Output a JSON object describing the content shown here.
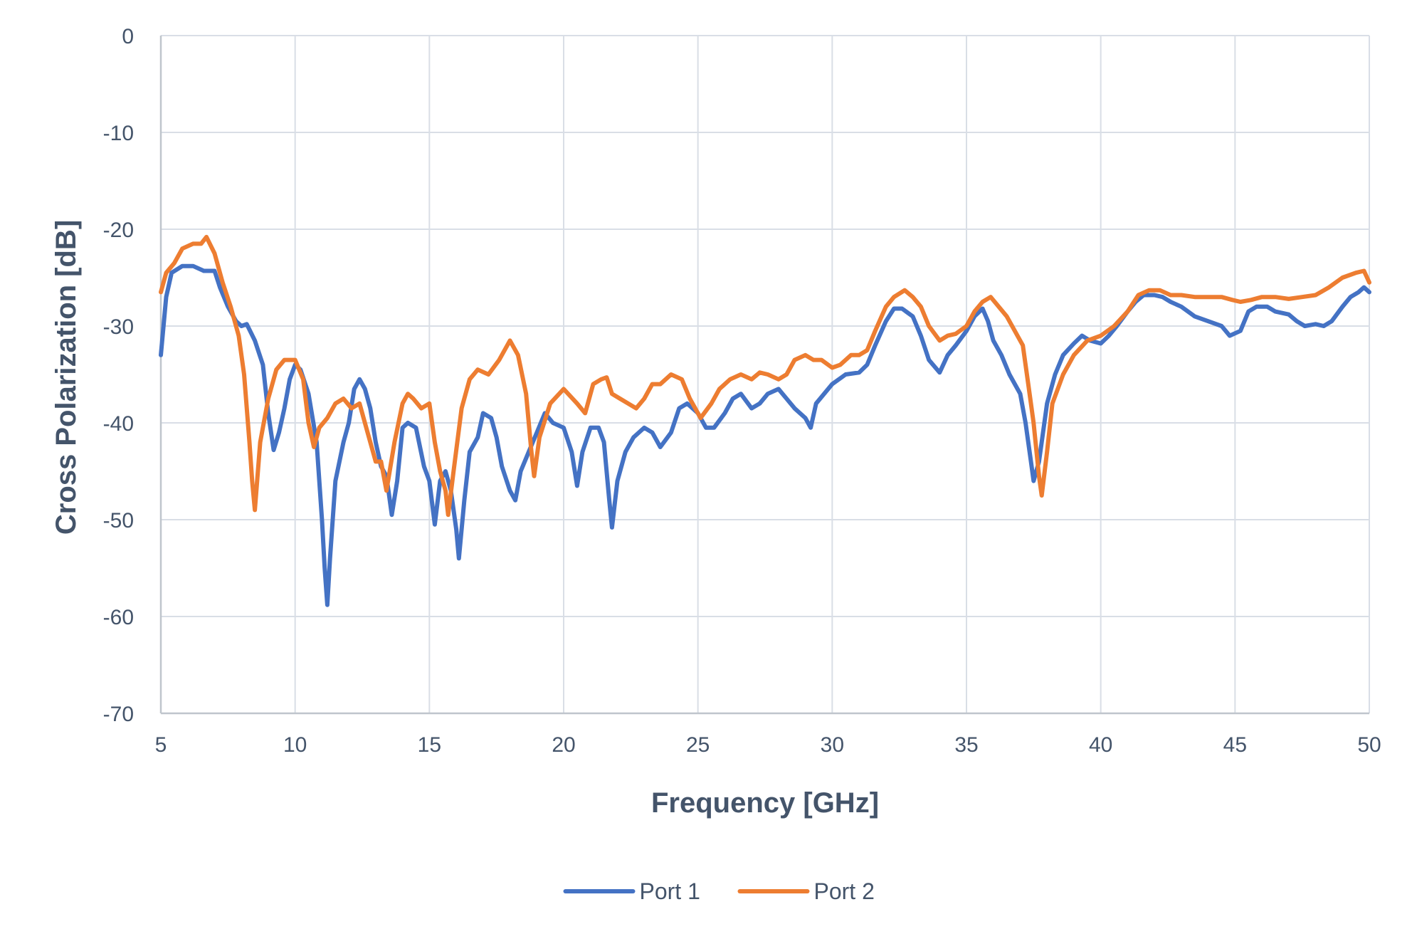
{
  "chart_data": {
    "type": "line",
    "title": "",
    "xlabel": "Frequency [GHz]",
    "ylabel": "Cross Polarization [dB]",
    "xlim": [
      5,
      50
    ],
    "ylim": [
      -70,
      0
    ],
    "x_ticks": [
      5,
      10,
      15,
      20,
      25,
      30,
      35,
      40,
      45,
      50
    ],
    "y_ticks": [
      0,
      -10,
      -20,
      -30,
      -40,
      -50,
      -60,
      -70
    ],
    "grid": true,
    "legend_position": "bottom",
    "series": [
      {
        "name": "Port 1",
        "color": "#4472c4",
        "points": [
          [
            5.0,
            -33.0
          ],
          [
            5.2,
            -27.0
          ],
          [
            5.4,
            -24.5
          ],
          [
            5.8,
            -23.8
          ],
          [
            6.2,
            -23.8
          ],
          [
            6.6,
            -24.3
          ],
          [
            7.0,
            -24.3
          ],
          [
            7.2,
            -26.0
          ],
          [
            7.5,
            -28.0
          ],
          [
            7.8,
            -29.5
          ],
          [
            8.0,
            -30.0
          ],
          [
            8.2,
            -29.8
          ],
          [
            8.5,
            -31.5
          ],
          [
            8.8,
            -34.0
          ],
          [
            9.0,
            -39.0
          ],
          [
            9.2,
            -42.8
          ],
          [
            9.4,
            -41.0
          ],
          [
            9.6,
            -38.5
          ],
          [
            9.8,
            -35.5
          ],
          [
            10.0,
            -34.0
          ],
          [
            10.2,
            -34.5
          ],
          [
            10.5,
            -37.0
          ],
          [
            10.8,
            -42.0
          ],
          [
            11.0,
            -50.0
          ],
          [
            11.1,
            -55.0
          ],
          [
            11.2,
            -58.8
          ],
          [
            11.3,
            -54.0
          ],
          [
            11.5,
            -46.0
          ],
          [
            11.8,
            -42.0
          ],
          [
            12.0,
            -40.0
          ],
          [
            12.2,
            -36.5
          ],
          [
            12.4,
            -35.5
          ],
          [
            12.6,
            -36.5
          ],
          [
            12.8,
            -38.5
          ],
          [
            13.0,
            -42.0
          ],
          [
            13.2,
            -44.5
          ],
          [
            13.4,
            -45.5
          ],
          [
            13.6,
            -49.5
          ],
          [
            13.8,
            -46.0
          ],
          [
            14.0,
            -40.5
          ],
          [
            14.2,
            -40.0
          ],
          [
            14.5,
            -40.5
          ],
          [
            14.8,
            -44.5
          ],
          [
            15.0,
            -46.0
          ],
          [
            15.2,
            -50.5
          ],
          [
            15.4,
            -46.0
          ],
          [
            15.6,
            -45.0
          ],
          [
            15.8,
            -47.0
          ],
          [
            16.0,
            -51.0
          ],
          [
            16.1,
            -54.0
          ],
          [
            16.3,
            -48.0
          ],
          [
            16.5,
            -43.0
          ],
          [
            16.8,
            -41.5
          ],
          [
            17.0,
            -39.0
          ],
          [
            17.3,
            -39.5
          ],
          [
            17.5,
            -41.5
          ],
          [
            17.7,
            -44.5
          ],
          [
            18.0,
            -47.0
          ],
          [
            18.2,
            -48.0
          ],
          [
            18.4,
            -45.0
          ],
          [
            18.7,
            -43.0
          ],
          [
            19.0,
            -41.0
          ],
          [
            19.3,
            -39.0
          ],
          [
            19.6,
            -40.0
          ],
          [
            20.0,
            -40.5
          ],
          [
            20.3,
            -43.0
          ],
          [
            20.5,
            -46.5
          ],
          [
            20.7,
            -43.0
          ],
          [
            21.0,
            -40.5
          ],
          [
            21.3,
            -40.5
          ],
          [
            21.5,
            -42.0
          ],
          [
            21.7,
            -48.0
          ],
          [
            21.8,
            -50.8
          ],
          [
            22.0,
            -46.0
          ],
          [
            22.3,
            -43.0
          ],
          [
            22.6,
            -41.5
          ],
          [
            23.0,
            -40.5
          ],
          [
            23.3,
            -41.0
          ],
          [
            23.6,
            -42.5
          ],
          [
            24.0,
            -41.0
          ],
          [
            24.3,
            -38.5
          ],
          [
            24.6,
            -38.0
          ],
          [
            25.0,
            -39.0
          ],
          [
            25.3,
            -40.5
          ],
          [
            25.6,
            -40.5
          ],
          [
            26.0,
            -39.0
          ],
          [
            26.3,
            -37.5
          ],
          [
            26.6,
            -37.0
          ],
          [
            27.0,
            -38.5
          ],
          [
            27.3,
            -38.0
          ],
          [
            27.6,
            -37.0
          ],
          [
            28.0,
            -36.5
          ],
          [
            28.3,
            -37.5
          ],
          [
            28.6,
            -38.5
          ],
          [
            29.0,
            -39.5
          ],
          [
            29.2,
            -40.5
          ],
          [
            29.4,
            -38.0
          ],
          [
            29.7,
            -37.0
          ],
          [
            30.0,
            -36.0
          ],
          [
            30.5,
            -35.0
          ],
          [
            31.0,
            -34.8
          ],
          [
            31.3,
            -34.0
          ],
          [
            31.6,
            -32.0
          ],
          [
            32.0,
            -29.5
          ],
          [
            32.3,
            -28.2
          ],
          [
            32.6,
            -28.2
          ],
          [
            33.0,
            -29.0
          ],
          [
            33.3,
            -31.0
          ],
          [
            33.6,
            -33.5
          ],
          [
            34.0,
            -34.8
          ],
          [
            34.3,
            -33.0
          ],
          [
            34.6,
            -32.0
          ],
          [
            35.0,
            -30.5
          ],
          [
            35.3,
            -29.0
          ],
          [
            35.6,
            -28.2
          ],
          [
            35.8,
            -29.5
          ],
          [
            36.0,
            -31.5
          ],
          [
            36.3,
            -33.0
          ],
          [
            36.6,
            -35.0
          ],
          [
            37.0,
            -37.0
          ],
          [
            37.2,
            -40.0
          ],
          [
            37.4,
            -44.0
          ],
          [
            37.5,
            -46.0
          ],
          [
            37.7,
            -44.0
          ],
          [
            38.0,
            -38.0
          ],
          [
            38.3,
            -35.0
          ],
          [
            38.6,
            -33.0
          ],
          [
            39.0,
            -31.8
          ],
          [
            39.3,
            -31.0
          ],
          [
            39.6,
            -31.5
          ],
          [
            40.0,
            -31.8
          ],
          [
            40.3,
            -31.0
          ],
          [
            40.6,
            -30.0
          ],
          [
            41.0,
            -28.5
          ],
          [
            41.3,
            -27.5
          ],
          [
            41.6,
            -26.8
          ],
          [
            42.0,
            -26.8
          ],
          [
            42.3,
            -27.0
          ],
          [
            42.6,
            -27.5
          ],
          [
            43.0,
            -28.0
          ],
          [
            43.5,
            -29.0
          ],
          [
            44.0,
            -29.5
          ],
          [
            44.5,
            -30.0
          ],
          [
            44.8,
            -31.0
          ],
          [
            45.2,
            -30.5
          ],
          [
            45.5,
            -28.5
          ],
          [
            45.8,
            -28.0
          ],
          [
            46.2,
            -28.0
          ],
          [
            46.5,
            -28.5
          ],
          [
            47.0,
            -28.8
          ],
          [
            47.3,
            -29.5
          ],
          [
            47.6,
            -30.0
          ],
          [
            48.0,
            -29.8
          ],
          [
            48.3,
            -30.0
          ],
          [
            48.6,
            -29.5
          ],
          [
            49.0,
            -28.0
          ],
          [
            49.3,
            -27.0
          ],
          [
            49.6,
            -26.5
          ],
          [
            49.8,
            -26.0
          ],
          [
            50.0,
            -26.5
          ]
        ]
      },
      {
        "name": "Port 2",
        "color": "#ed7d31",
        "points": [
          [
            5.0,
            -26.5
          ],
          [
            5.2,
            -24.5
          ],
          [
            5.5,
            -23.5
          ],
          [
            5.8,
            -22.0
          ],
          [
            6.2,
            -21.5
          ],
          [
            6.5,
            -21.5
          ],
          [
            6.7,
            -20.8
          ],
          [
            7.0,
            -22.5
          ],
          [
            7.3,
            -25.5
          ],
          [
            7.6,
            -28.0
          ],
          [
            7.9,
            -31.0
          ],
          [
            8.1,
            -35.0
          ],
          [
            8.3,
            -42.0
          ],
          [
            8.4,
            -46.0
          ],
          [
            8.5,
            -49.0
          ],
          [
            8.7,
            -42.0
          ],
          [
            9.0,
            -37.5
          ],
          [
            9.3,
            -34.5
          ],
          [
            9.6,
            -33.5
          ],
          [
            10.0,
            -33.5
          ],
          [
            10.3,
            -35.5
          ],
          [
            10.5,
            -40.0
          ],
          [
            10.7,
            -42.5
          ],
          [
            10.9,
            -40.5
          ],
          [
            11.2,
            -39.5
          ],
          [
            11.5,
            -38.0
          ],
          [
            11.8,
            -37.5
          ],
          [
            12.1,
            -38.5
          ],
          [
            12.4,
            -38.0
          ],
          [
            12.7,
            -41.0
          ],
          [
            13.0,
            -44.0
          ],
          [
            13.2,
            -44.0
          ],
          [
            13.4,
            -47.0
          ],
          [
            13.7,
            -42.0
          ],
          [
            14.0,
            -38.0
          ],
          [
            14.2,
            -37.0
          ],
          [
            14.4,
            -37.5
          ],
          [
            14.7,
            -38.5
          ],
          [
            15.0,
            -38.0
          ],
          [
            15.2,
            -42.0
          ],
          [
            15.4,
            -45.0
          ],
          [
            15.6,
            -47.0
          ],
          [
            15.7,
            -49.5
          ],
          [
            15.9,
            -45.0
          ],
          [
            16.2,
            -38.5
          ],
          [
            16.5,
            -35.5
          ],
          [
            16.8,
            -34.5
          ],
          [
            17.2,
            -35.0
          ],
          [
            17.6,
            -33.5
          ],
          [
            18.0,
            -31.5
          ],
          [
            18.3,
            -33.0
          ],
          [
            18.6,
            -37.0
          ],
          [
            18.8,
            -43.0
          ],
          [
            18.9,
            -45.5
          ],
          [
            19.1,
            -41.5
          ],
          [
            19.5,
            -38.0
          ],
          [
            20.0,
            -36.5
          ],
          [
            20.5,
            -38.0
          ],
          [
            20.8,
            -39.0
          ],
          [
            21.1,
            -36.0
          ],
          [
            21.4,
            -35.5
          ],
          [
            21.6,
            -35.3
          ],
          [
            21.8,
            -37.0
          ],
          [
            22.1,
            -37.5
          ],
          [
            22.4,
            -38.0
          ],
          [
            22.7,
            -38.5
          ],
          [
            23.0,
            -37.5
          ],
          [
            23.3,
            -36.0
          ],
          [
            23.6,
            -36.0
          ],
          [
            24.0,
            -35.0
          ],
          [
            24.4,
            -35.5
          ],
          [
            24.7,
            -37.5
          ],
          [
            25.1,
            -39.5
          ],
          [
            25.5,
            -38.0
          ],
          [
            25.8,
            -36.5
          ],
          [
            26.2,
            -35.5
          ],
          [
            26.6,
            -35.0
          ],
          [
            27.0,
            -35.5
          ],
          [
            27.3,
            -34.8
          ],
          [
            27.6,
            -35.0
          ],
          [
            28.0,
            -35.5
          ],
          [
            28.3,
            -35.0
          ],
          [
            28.6,
            -33.5
          ],
          [
            29.0,
            -33.0
          ],
          [
            29.3,
            -33.5
          ],
          [
            29.6,
            -33.5
          ],
          [
            30.0,
            -34.3
          ],
          [
            30.3,
            -34.0
          ],
          [
            30.7,
            -33.0
          ],
          [
            31.0,
            -33.0
          ],
          [
            31.3,
            -32.5
          ],
          [
            31.6,
            -30.5
          ],
          [
            32.0,
            -28.0
          ],
          [
            32.3,
            -27.0
          ],
          [
            32.7,
            -26.3
          ],
          [
            33.0,
            -27.0
          ],
          [
            33.3,
            -28.0
          ],
          [
            33.6,
            -30.0
          ],
          [
            34.0,
            -31.5
          ],
          [
            34.3,
            -31.0
          ],
          [
            34.6,
            -30.8
          ],
          [
            35.0,
            -30.0
          ],
          [
            35.3,
            -28.5
          ],
          [
            35.6,
            -27.5
          ],
          [
            35.9,
            -27.0
          ],
          [
            36.2,
            -28.0
          ],
          [
            36.5,
            -29.0
          ],
          [
            36.8,
            -30.5
          ],
          [
            37.1,
            -32.0
          ],
          [
            37.3,
            -36.0
          ],
          [
            37.5,
            -40.0
          ],
          [
            37.7,
            -45.5
          ],
          [
            37.8,
            -47.5
          ],
          [
            38.0,
            -43.0
          ],
          [
            38.2,
            -38.0
          ],
          [
            38.6,
            -35.0
          ],
          [
            39.0,
            -33.0
          ],
          [
            39.5,
            -31.5
          ],
          [
            40.0,
            -31.0
          ],
          [
            40.5,
            -30.0
          ],
          [
            41.0,
            -28.5
          ],
          [
            41.4,
            -26.8
          ],
          [
            41.8,
            -26.3
          ],
          [
            42.2,
            -26.3
          ],
          [
            42.6,
            -26.8
          ],
          [
            43.0,
            -26.8
          ],
          [
            43.5,
            -27.0
          ],
          [
            44.0,
            -27.0
          ],
          [
            44.5,
            -27.0
          ],
          [
            44.9,
            -27.3
          ],
          [
            45.2,
            -27.5
          ],
          [
            45.6,
            -27.3
          ],
          [
            46.0,
            -27.0
          ],
          [
            46.5,
            -27.0
          ],
          [
            47.0,
            -27.2
          ],
          [
            47.5,
            -27.0
          ],
          [
            48.0,
            -26.8
          ],
          [
            48.5,
            -26.0
          ],
          [
            49.0,
            -25.0
          ],
          [
            49.5,
            -24.5
          ],
          [
            49.8,
            -24.3
          ],
          [
            50.0,
            -25.5
          ]
        ]
      }
    ]
  }
}
